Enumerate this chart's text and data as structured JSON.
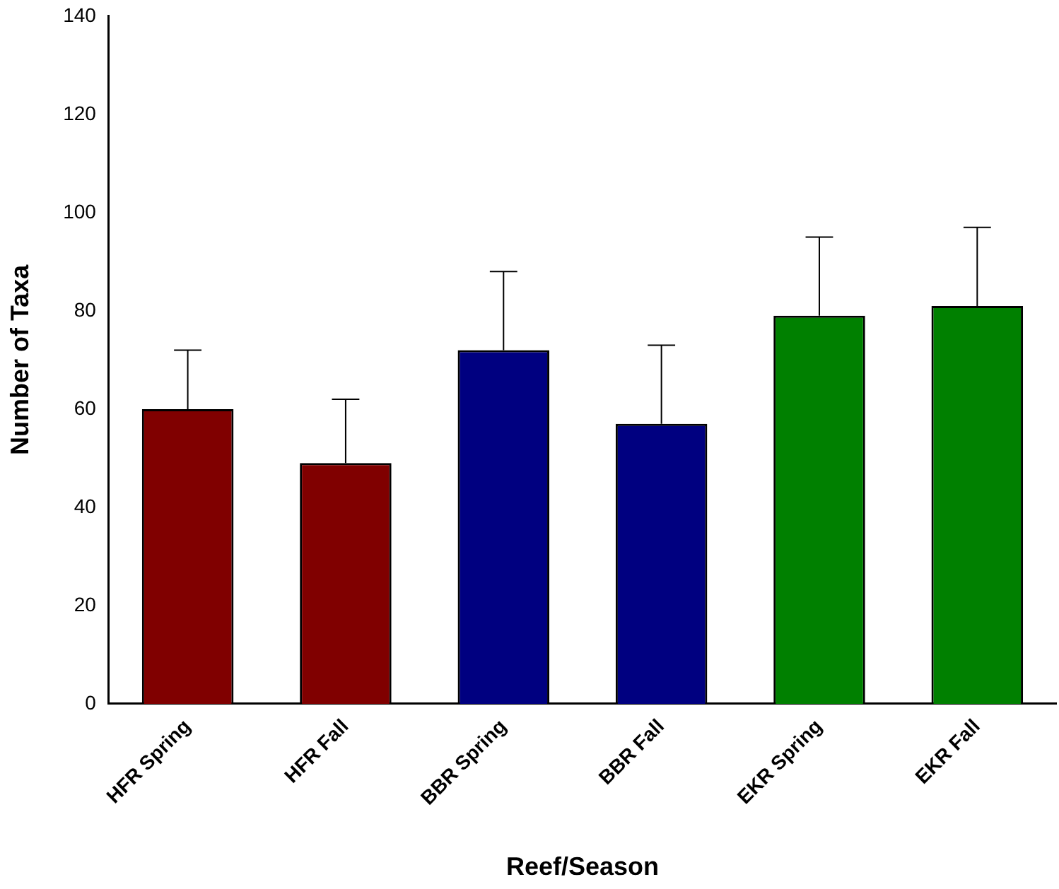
{
  "chart_data": {
    "type": "bar",
    "xlabel": "Reef/Season",
    "ylabel": "Number of Taxa",
    "categories": [
      "HFR Spring",
      "HFR Fall",
      "BBR Spring",
      "BBR Fall",
      "EKR Spring",
      "EKR Fall"
    ],
    "values": [
      60,
      49,
      72,
      57,
      79,
      81
    ],
    "colors": [
      "#800000",
      "#800000",
      "#000080",
      "#000080",
      "#008000",
      "#008000"
    ],
    "errors": [
      [
        60,
        72
      ],
      [
        49,
        62
      ],
      [
        72,
        88
      ],
      [
        57,
        73
      ],
      [
        79,
        95
      ],
      [
        81,
        97
      ]
    ],
    "ylim": [
      0,
      140
    ],
    "yticks": [
      0,
      20,
      40,
      60,
      80,
      100,
      120,
      140
    ],
    "grid": false,
    "legend": false
  }
}
